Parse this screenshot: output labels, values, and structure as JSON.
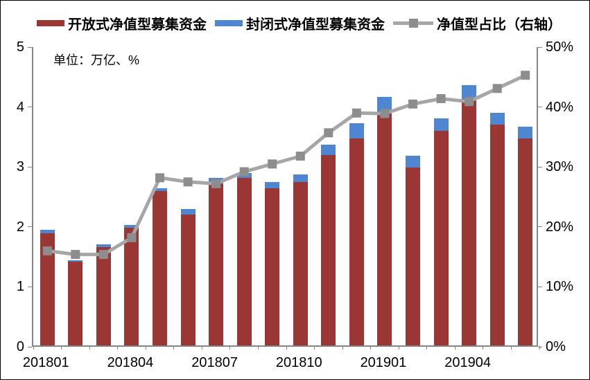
{
  "unit_label": "单位：万亿、%",
  "chart_data": {
    "type": "bar",
    "subtype": "stacked-bars-with-line-overlay",
    "title": "",
    "legend_position": "top",
    "grid": false,
    "categories": [
      "201801",
      "201802",
      "201803",
      "201804",
      "201805",
      "201806",
      "201807",
      "201808",
      "201809",
      "201810",
      "201811",
      "201812",
      "201901",
      "201902",
      "201903",
      "201904",
      "201905",
      "201906"
    ],
    "series": [
      {
        "name": "开放式净值型募集资金",
        "type": "bar",
        "stack": "raised-capital",
        "color": "#9A3734",
        "values": [
          1.87,
          1.4,
          1.64,
          1.96,
          2.57,
          2.18,
          2.69,
          2.79,
          2.62,
          2.72,
          3.17,
          3.45,
          3.87,
          2.97,
          3.58,
          4.1,
          3.68,
          3.45
        ]
      },
      {
        "name": "封闭式净值型募集资金",
        "type": "bar",
        "stack": "raised-capital",
        "color": "#4F86D2",
        "values": [
          0.06,
          0.02,
          0.05,
          0.05,
          0.05,
          0.09,
          0.11,
          0.08,
          0.1,
          0.13,
          0.18,
          0.26,
          0.27,
          0.19,
          0.21,
          0.24,
          0.2,
          0.2
        ]
      },
      {
        "name": "净值型占比（右轴）",
        "type": "line",
        "axis": "right",
        "color": "#A6A6A6",
        "marker": "square",
        "marker_color": "#8D8D8D",
        "values": [
          16.0,
          15.4,
          15.4,
          18.2,
          28.2,
          27.5,
          27.2,
          29.2,
          30.5,
          31.8,
          35.7,
          39.0,
          38.9,
          40.5,
          41.4,
          40.9,
          43.1,
          45.3
        ]
      }
    ],
    "left_axis": {
      "min": 0,
      "max": 5,
      "tick_labels": [
        "0",
        "1",
        "2",
        "3",
        "4",
        "5"
      ]
    },
    "right_axis": {
      "min": 0,
      "max": 50,
      "tick_labels": [
        "0%",
        "10%",
        "20%",
        "30%",
        "40%",
        "50%"
      ]
    },
    "x_axis": {
      "tick_labels": [
        "201801",
        "201804",
        "201807",
        "201810",
        "201901",
        "201904"
      ],
      "tick_label_positions": [
        0,
        3,
        6,
        9,
        12,
        15
      ]
    }
  }
}
